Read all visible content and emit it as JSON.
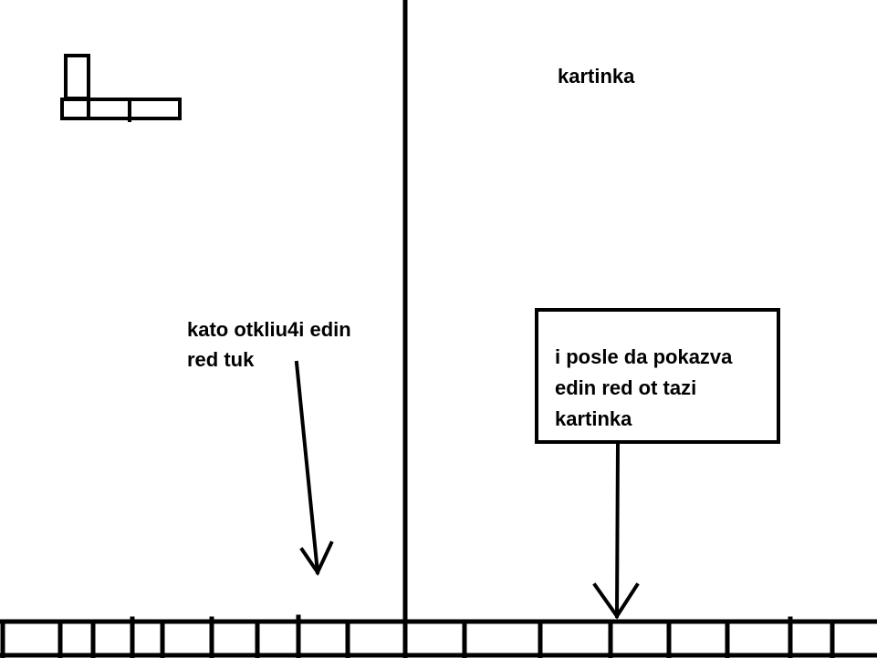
{
  "colors": {
    "background": "#ffffff",
    "ink": "#000000"
  },
  "left_panel": {
    "note_line1": "kato otkliu4i edin",
    "note_line2": "red tuk"
  },
  "right_panel": {
    "title": "kartinka",
    "box_line1": "i posle da pokazva",
    "box_line2": "edin red ot tazi",
    "box_line3": "kartinka"
  }
}
